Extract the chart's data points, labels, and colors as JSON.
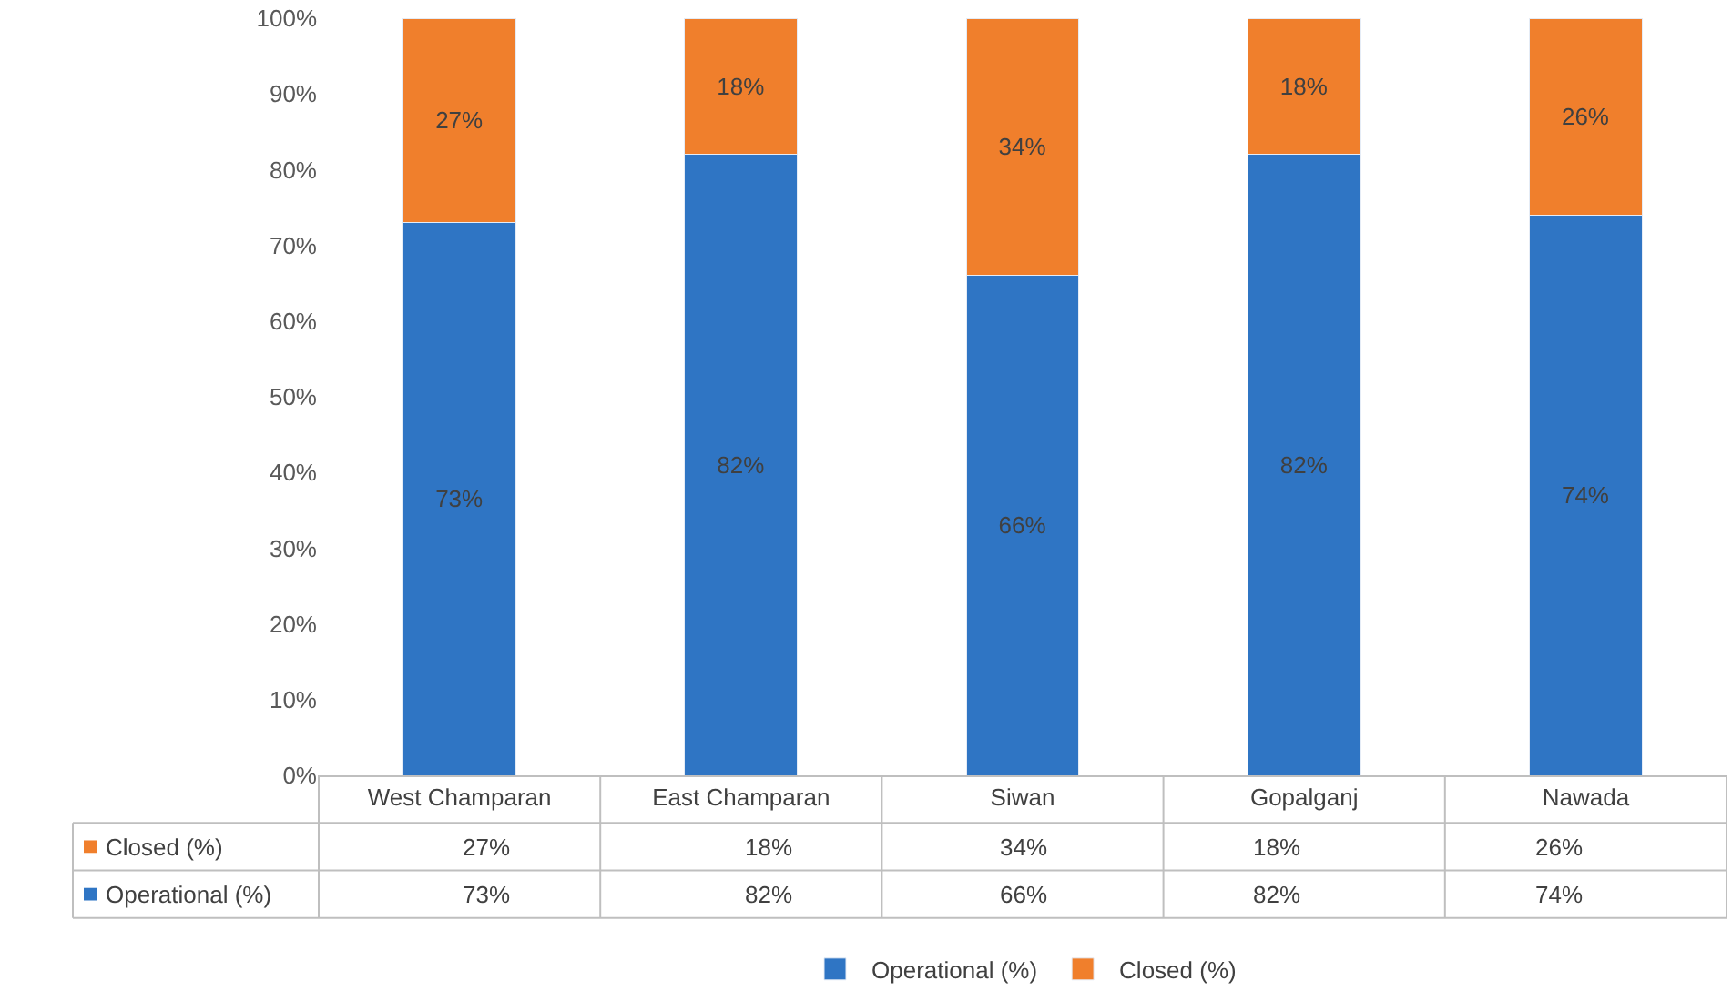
{
  "chart_data": {
    "type": "bar",
    "stacked": true,
    "categories": [
      "West Champaran",
      "East Champaran",
      "Siwan",
      "Gopalganj",
      "Nawada"
    ],
    "series": [
      {
        "name": "Operational (%)",
        "color": "#2f75c4",
        "values": [
          73,
          82,
          66,
          82,
          74
        ],
        "value_labels": [
          "73%",
          "82%",
          "66%",
          "82%",
          "74%"
        ]
      },
      {
        "name": "Closed (%)",
        "color": "#f07f2c",
        "values": [
          27,
          18,
          34,
          18,
          26
        ],
        "value_labels": [
          "27%",
          "18%",
          "34%",
          "18%",
          "26%"
        ]
      }
    ],
    "ylim": [
      0,
      100
    ],
    "yticks": [
      {
        "value": 0,
        "label": "0%"
      },
      {
        "value": 10,
        "label": "10%"
      },
      {
        "value": 20,
        "label": "20%"
      },
      {
        "value": 30,
        "label": "30%"
      },
      {
        "value": 40,
        "label": "40%"
      },
      {
        "value": 50,
        "label": "50%"
      },
      {
        "value": 60,
        "label": "60%"
      },
      {
        "value": 70,
        "label": "70%"
      },
      {
        "value": 80,
        "label": "80%"
      },
      {
        "value": 90,
        "label": "90%"
      },
      {
        "value": 100,
        "label": "100%"
      }
    ],
    "legend": "bottom"
  }
}
